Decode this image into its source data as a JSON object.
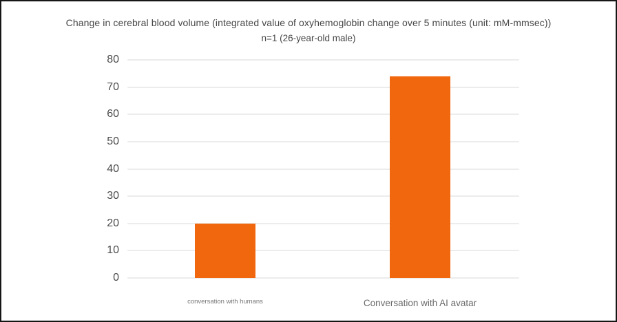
{
  "frame": {
    "background": "#ffffff",
    "border_color": "#161616"
  },
  "colors": {
    "bar": "#F0670E",
    "grid": "#ECECEC",
    "title_text": "#454545",
    "ytick_text": "#4C4C4C",
    "xlabel_small_text": "#767676",
    "xlabel_large_text": "#696969"
  },
  "chart_data": {
    "type": "bar",
    "title": "Change in cerebral blood volume (integrated value of oxyhemoglobin change over 5 minutes (unit: mM-mmsec))",
    "subtitle": "n=1 (26-year-old male)",
    "categories": [
      "conversation with humans",
      "Conversation with AI avatar"
    ],
    "values": [
      20,
      74
    ],
    "xlabel": "",
    "ylabel": "",
    "ylim": [
      0,
      80
    ],
    "yticks": [
      0,
      10,
      20,
      30,
      40,
      50,
      60,
      70,
      80
    ],
    "grid": true,
    "legend": "none",
    "bar_color": "#F0670E"
  }
}
